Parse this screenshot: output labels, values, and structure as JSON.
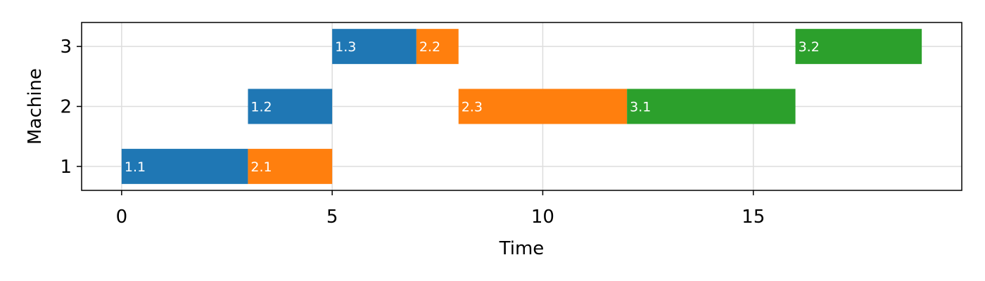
{
  "chart_data": {
    "type": "bar",
    "orientation": "horizontal",
    "title": "",
    "xlabel": "Time",
    "ylabel": "Machine",
    "xlim": [
      -0.95,
      19.95
    ],
    "ylim": [
      0.6,
      3.4
    ],
    "xticks": [
      0,
      5,
      10,
      15
    ],
    "yticks": [
      1,
      2,
      3
    ],
    "grid": true,
    "legend": "none",
    "series": [
      {
        "color": "#1f77b4",
        "tasks": [
          {
            "label": "1.1",
            "machine": 1,
            "start": 0,
            "duration": 3
          },
          {
            "label": "1.2",
            "machine": 2,
            "start": 3,
            "duration": 2
          },
          {
            "label": "1.3",
            "machine": 3,
            "start": 5,
            "duration": 2
          }
        ]
      },
      {
        "color": "#ff7f0e",
        "tasks": [
          {
            "label": "2.1",
            "machine": 1,
            "start": 3,
            "duration": 2
          },
          {
            "label": "2.2",
            "machine": 3,
            "start": 7,
            "duration": 1
          },
          {
            "label": "2.3",
            "machine": 2,
            "start": 8,
            "duration": 4
          }
        ]
      },
      {
        "color": "#2ca02c",
        "tasks": [
          {
            "label": "3.1",
            "machine": 2,
            "start": 12,
            "duration": 4
          },
          {
            "label": "3.2",
            "machine": 3,
            "start": 16,
            "duration": 3
          }
        ]
      }
    ]
  }
}
